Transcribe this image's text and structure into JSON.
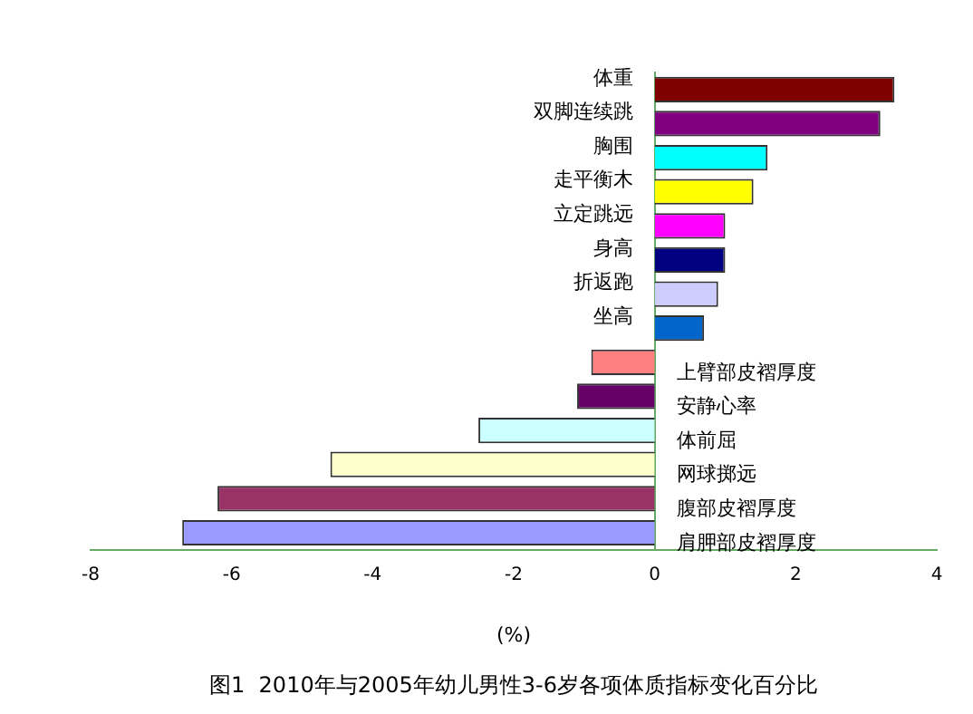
{
  "chart_data": {
    "type": "bar",
    "orientation": "horizontal",
    "title": "图1  2010年与2005年幼儿男性3-6岁各项体质指标变化百分比",
    "xlabel": "(%)",
    "categories": [
      "体重",
      "双脚连续跳",
      "胸围",
      "走平衡木",
      "立定跳远",
      "身高",
      "折返跑",
      "坐高",
      "上臂部皮褶厚度",
      "安静心率",
      "体前屈",
      "网球掷远",
      "腹部皮褶厚度",
      "肩胛部皮褶厚度"
    ],
    "values": [
      3.4,
      3.2,
      1.6,
      1.4,
      1.0,
      1.0,
      0.9,
      0.7,
      -0.9,
      -1.1,
      -2.5,
      -4.6,
      -6.2,
      -6.7
    ],
    "colors": [
      "#800000",
      "#800080",
      "#00ffff",
      "#ffff00",
      "#ff00ff",
      "#000080",
      "#ccccff",
      "#0066cc",
      "#ff8080",
      "#660066",
      "#ccffff",
      "#ffffcc",
      "#993366",
      "#9999ff"
    ],
    "xlim": [
      -8,
      4
    ],
    "xticks": [
      -8,
      -6,
      -4,
      -2,
      0,
      2,
      4
    ]
  }
}
